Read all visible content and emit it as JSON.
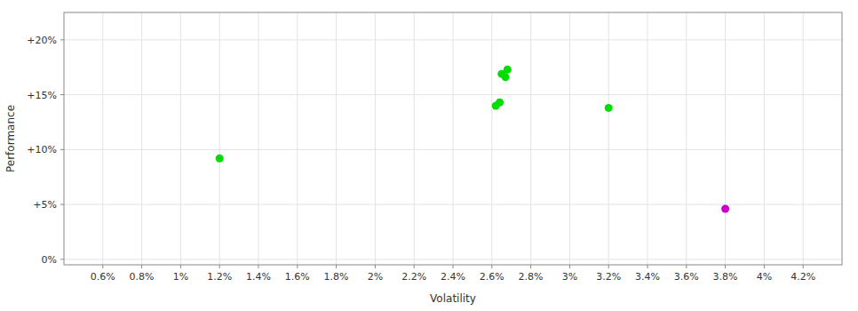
{
  "chart_data": {
    "type": "scatter",
    "xlabel": "Volatility",
    "ylabel": "Performance",
    "xlim": [
      0.004,
      0.044
    ],
    "ylim": [
      -0.005,
      0.225
    ],
    "xticks": [
      {
        "value": 0.006,
        "label": "0.6%"
      },
      {
        "value": 0.008,
        "label": "0.8%"
      },
      {
        "value": 0.01,
        "label": "1%"
      },
      {
        "value": 0.012,
        "label": "1.2%"
      },
      {
        "value": 0.014,
        "label": "1.4%"
      },
      {
        "value": 0.016,
        "label": "1.6%"
      },
      {
        "value": 0.018,
        "label": "1.8%"
      },
      {
        "value": 0.02,
        "label": "2%"
      },
      {
        "value": 0.022,
        "label": "2.2%"
      },
      {
        "value": 0.024,
        "label": "2.4%"
      },
      {
        "value": 0.026,
        "label": "2.6%"
      },
      {
        "value": 0.028,
        "label": "2.8%"
      },
      {
        "value": 0.03,
        "label": "3%"
      },
      {
        "value": 0.032,
        "label": "3.2%"
      },
      {
        "value": 0.034,
        "label": "3.4%"
      },
      {
        "value": 0.036,
        "label": "3.6%"
      },
      {
        "value": 0.038,
        "label": "3.8%"
      },
      {
        "value": 0.04,
        "label": "4%"
      },
      {
        "value": 0.042,
        "label": "4.2%"
      }
    ],
    "yticks": [
      {
        "value": 0.0,
        "label": "0%"
      },
      {
        "value": 0.05,
        "label": "+5%"
      },
      {
        "value": 0.1,
        "label": "+10%"
      },
      {
        "value": 0.15,
        "label": "+15%"
      },
      {
        "value": 0.2,
        "label": "+20%"
      }
    ],
    "grid": true,
    "series": [
      {
        "color": "#00dd00",
        "x": [
          0.0265,
          0.0268,
          0.0267,
          0.0264,
          0.0262,
          0.012,
          0.032
        ],
        "values": [
          0.169,
          0.173,
          0.166,
          0.143,
          0.14,
          0.092,
          0.138
        ]
      },
      {
        "color": "#cc00cc",
        "x": [
          0.038
        ],
        "values": [
          0.046
        ]
      }
    ]
  }
}
